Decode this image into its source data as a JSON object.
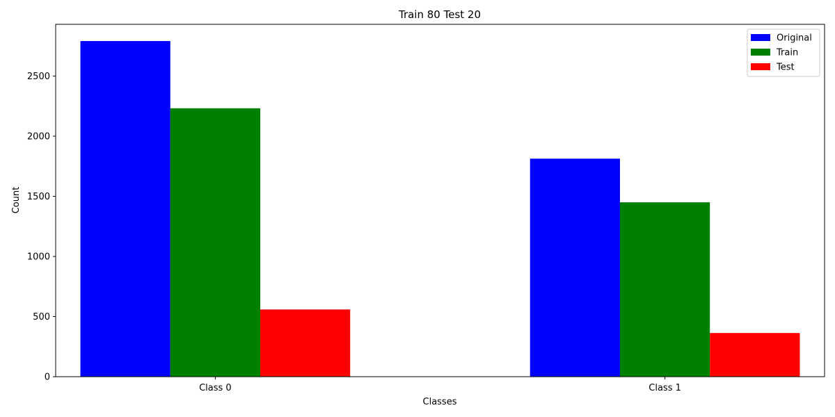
{
  "chart_data": {
    "type": "bar",
    "title": "Train 80 Test 20",
    "xlabel": "Classes",
    "ylabel": "Count",
    "categories": [
      "Class 0",
      "Class 1"
    ],
    "series": [
      {
        "name": "Original",
        "color": "#0000ff",
        "values": [
          2791,
          1813
        ]
      },
      {
        "name": "Train",
        "color": "#008000",
        "values": [
          2232,
          1450
        ]
      },
      {
        "name": "Test",
        "color": "#ff0000",
        "values": [
          559,
          363
        ]
      }
    ],
    "ylim": [
      0,
      2930
    ],
    "yticks": [
      0,
      500,
      1000,
      1500,
      2000,
      2500
    ],
    "grid": false,
    "legend_position": "top-right"
  }
}
